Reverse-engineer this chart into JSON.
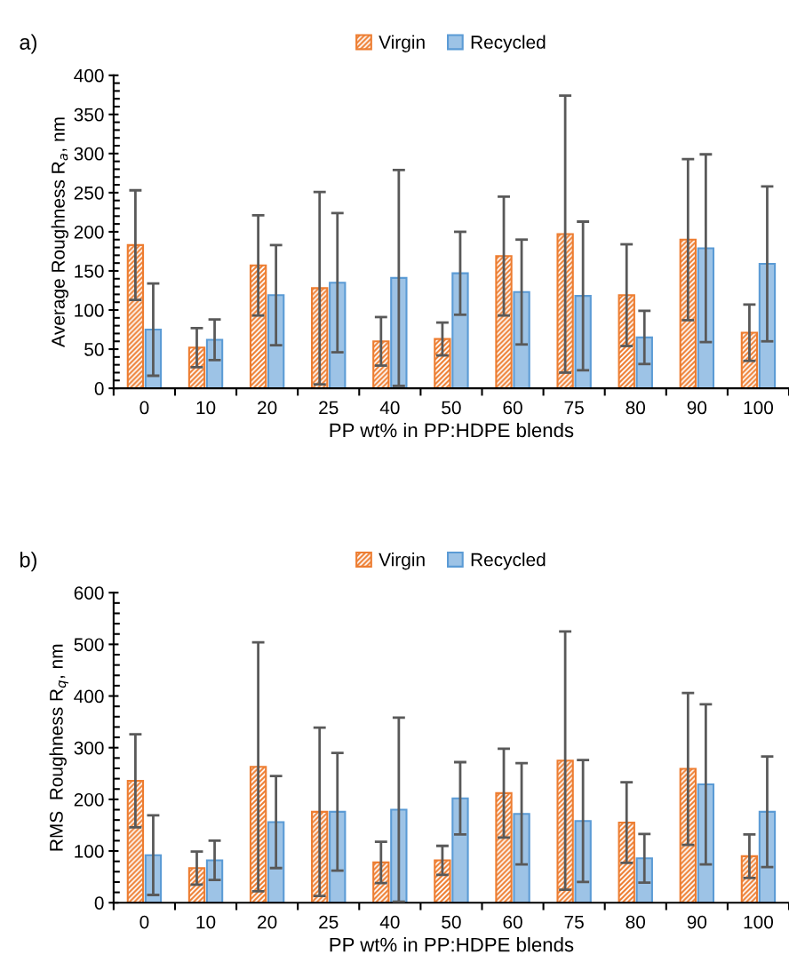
{
  "chart_data": [
    {
      "type": "bar",
      "xlabel": "PP wt% in PP:HDPE blends",
      "ylabel": "Average Roughness R$_{a}$, nm",
      "annotations": [
        "a)"
      ],
      "categories": [
        "0",
        "10",
        "20",
        "25",
        "40",
        "50",
        "60",
        "75",
        "80",
        "90",
        "100"
      ],
      "series": [
        {
          "name": "Virgin",
          "color": "#ed7d31",
          "values": [
            183,
            52,
            157,
            128,
            60,
            63,
            169,
            197,
            119,
            190,
            71
          ],
          "errors": [
            70,
            25,
            64,
            123,
            31,
            21,
            76,
            177,
            65,
            103,
            36
          ]
        },
        {
          "name": "Recycled",
          "color": "#9dc3e6",
          "values": [
            75,
            62,
            119,
            135,
            141,
            147,
            123,
            118,
            65,
            179,
            159
          ],
          "errors": [
            59,
            26,
            64,
            89,
            138,
            53,
            67,
            95,
            34,
            120,
            99
          ]
        }
      ],
      "ylim": [
        0,
        400
      ],
      "yticks": [
        0,
        50,
        100,
        150,
        200,
        250,
        300,
        350,
        400
      ],
      "grid": false,
      "legend": "top"
    },
    {
      "type": "bar",
      "xlabel": "PP wt% in PP:HDPE blends",
      "ylabel": "RMS  Roughness R$_{q}$, nm",
      "annotations": [
        "b)"
      ],
      "categories": [
        "0",
        "10",
        "20",
        "25",
        "40",
        "50",
        "60",
        "75",
        "80",
        "90",
        "100"
      ],
      "series": [
        {
          "name": "Virgin",
          "color": "#ed7d31",
          "values": [
            236,
            67,
            263,
            176,
            78,
            82,
            212,
            275,
            155,
            259,
            90
          ],
          "errors": [
            90,
            32,
            241,
            163,
            40,
            28,
            86,
            250,
            78,
            147,
            42
          ]
        },
        {
          "name": "Recycled",
          "color": "#9dc3e6",
          "values": [
            92,
            82,
            156,
            176,
            180,
            202,
            172,
            158,
            86,
            229,
            176
          ],
          "errors": [
            77,
            38,
            89,
            114,
            178,
            70,
            98,
            118,
            47,
            155,
            107
          ]
        }
      ],
      "ylim": [
        0,
        600
      ],
      "yticks": [
        0,
        100,
        200,
        300,
        400,
        500,
        600
      ],
      "grid": false,
      "legend": "top"
    }
  ]
}
